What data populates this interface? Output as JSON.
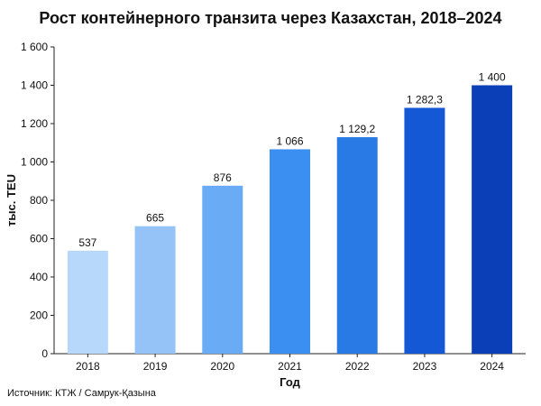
{
  "chart_data": {
    "type": "bar",
    "title": "Рост контейнерного транзита через Казахстан, 2018–2024",
    "xlabel": "Год",
    "ylabel": "тыс. TEU",
    "categories": [
      "2018",
      "2019",
      "2020",
      "2021",
      "2022",
      "2023",
      "2024"
    ],
    "values": [
      537,
      665,
      876,
      1066,
      1129.2,
      1282.3,
      1400
    ],
    "data_labels": [
      "537",
      "665",
      "876",
      "1 066",
      "1 129,2",
      "1 282,3",
      "1 400"
    ],
    "ylim": [
      0,
      1600
    ],
    "yticks": [
      0,
      200,
      400,
      600,
      800,
      1000,
      1200,
      1400,
      1600
    ],
    "ytick_labels": [
      "0",
      "200",
      "400",
      "600",
      "800",
      "1 000",
      "1 200",
      "1 400",
      "1 600"
    ],
    "grid": false,
    "legend": "none",
    "colors": [
      "#b8d8fb",
      "#95c3f8",
      "#6aabf5",
      "#3a8ff0",
      "#2a7ae6",
      "#1558d6",
      "#0a3fb8"
    ]
  },
  "source": "Источник: КТЖ / Самрук-Қазына"
}
